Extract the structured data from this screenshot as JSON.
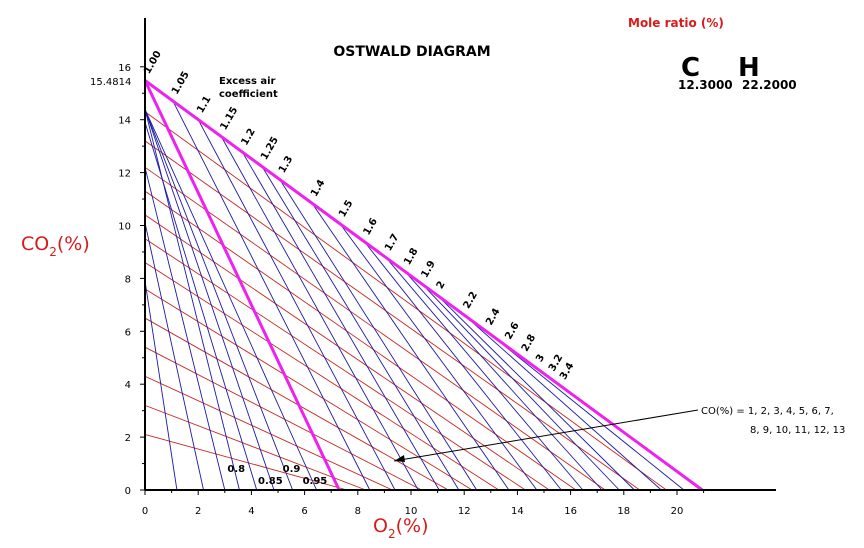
{
  "chart_data": {
    "type": "line",
    "title": "OSTWALD DIAGRAM",
    "xlabel_main": "O",
    "xlabel_sub": "2",
    "xlabel_unit": "(%)",
    "ylabel_main": "CO",
    "ylabel_sub": "2",
    "ylabel_unit": "(%)",
    "xlim": [
      0,
      23.5
    ],
    "ylim": [
      0,
      17.5
    ],
    "xticks": [
      0,
      2,
      4,
      6,
      8,
      10,
      12,
      14,
      16,
      18,
      20
    ],
    "yticks": [
      0,
      2,
      4,
      6,
      8,
      10,
      12,
      14,
      16
    ],
    "co2_max_label": "15.4814",
    "co2_max": 15.4814,
    "o2_max": 20.95,
    "complete_combustion_line": {
      "x": [
        0,
        20.95
      ],
      "y": [
        15.4814,
        0
      ]
    },
    "excess_air_label": "Excess air coefficient",
    "excess_air_label_lines": [
      "Excess air",
      "coefficient"
    ],
    "excess_air_lines": [
      {
        "label": "1.00",
        "o2": 0.0
      },
      {
        "label": "1.05",
        "o2": 1.05
      },
      {
        "label": "1.1",
        "o2": 2.0
      },
      {
        "label": "1.15",
        "o2": 2.87
      },
      {
        "label": "1.2",
        "o2": 3.66
      },
      {
        "label": "1.25",
        "o2": 4.4
      },
      {
        "label": "1.3",
        "o2": 5.07
      },
      {
        "label": "1.4",
        "o2": 6.28
      },
      {
        "label": "1.5",
        "o2": 7.33
      },
      {
        "label": "1.6",
        "o2": 8.25
      },
      {
        "label": "1.7",
        "o2": 9.06
      },
      {
        "label": "1.8",
        "o2": 9.78
      },
      {
        "label": "1.9",
        "o2": 10.43
      },
      {
        "label": "2",
        "o2": 11.0
      },
      {
        "label": "2.2",
        "o2": 12.01
      },
      {
        "label": "2.4",
        "o2": 12.86
      },
      {
        "label": "2.6",
        "o2": 13.58
      },
      {
        "label": "2.8",
        "o2": 14.2
      },
      {
        "label": "3",
        "o2": 14.74
      },
      {
        "label": "3.2",
        "o2": 15.22
      },
      {
        "label": "3.4",
        "o2": 15.64
      }
    ],
    "sub_stoich_lines": [
      {
        "label": "0.8",
        "x0": 3.55
      },
      {
        "label": "0.85",
        "x0": 4.85
      },
      {
        "label": "0.9",
        "x0": 5.55
      },
      {
        "label": "0.95",
        "x0": 6.45
      }
    ],
    "deficiency_boundary": {
      "x": [
        0,
        7.3
      ],
      "y": [
        15.4814,
        0
      ]
    },
    "co_lines": {
      "values": [
        1,
        2,
        3,
        4,
        5,
        6,
        7,
        8,
        9,
        10,
        11,
        12,
        13
      ],
      "annotation_line1": "CO(%) = 1, 2, 3, 4, 5, 6, 7,",
      "annotation_line2": "8, 9, 10, 11, 12, 13",
      "lines": [
        {
          "co": 1,
          "y0": 14.3,
          "x1": 19.6
        },
        {
          "co": 2,
          "y0": 13.2,
          "x1": 18.6
        },
        {
          "co": 3,
          "y0": 12.2,
          "x1": 17.3
        },
        {
          "co": 4,
          "y0": 11.3,
          "x1": 16.2
        },
        {
          "co": 5,
          "y0": 10.4,
          "x1": 15.2
        },
        {
          "co": 6,
          "y0": 9.5,
          "x1": 14.3
        },
        {
          "co": 7,
          "y0": 8.6,
          "x1": 13.3
        },
        {
          "co": 8,
          "y0": 7.6,
          "x1": 12.3
        },
        {
          "co": 9,
          "y0": 6.5,
          "x1": 11.4
        },
        {
          "co": 10,
          "y0": 5.4,
          "x1": 10.4
        },
        {
          "co": 11,
          "y0": 4.3,
          "x1": 9.3
        },
        {
          "co": 12,
          "y0": 3.2,
          "x1": 8.3
        },
        {
          "co": 13,
          "y0": 2.1,
          "x1": 7.6
        }
      ]
    },
    "mole_ratio": {
      "label": "Mole ratio (%)",
      "c_symbol": "C",
      "c_value": "12.3000",
      "h_symbol": "H",
      "h_value": "22.2000"
    },
    "colors": {
      "axis": "#000000",
      "magenta": "#ee22ee",
      "blue": "#1a1aa6",
      "red": "#c8281e",
      "title_red": "#d81b1b"
    }
  }
}
